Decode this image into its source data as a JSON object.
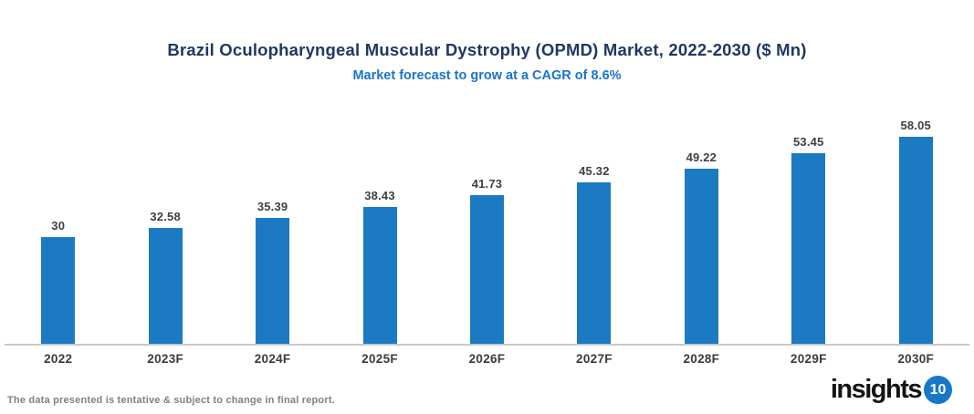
{
  "header": {
    "title": "Brazil Oculopharyngeal Muscular Dystrophy (OPMD) Market, 2022-2030 ($ Mn)",
    "subtitle": "Market forecast to grow at a CAGR of 8.6%"
  },
  "chart_data": {
    "type": "bar",
    "title": "Brazil Oculopharyngeal Muscular Dystrophy (OPMD) Market, 2022-2030 ($ Mn)",
    "subtitle": "Market forecast to grow at a CAGR of 8.6%",
    "categories": [
      "2022",
      "2023F",
      "2024F",
      "2025F",
      "2026F",
      "2027F",
      "2028F",
      "2029F",
      "2030F"
    ],
    "values": [
      30,
      32.58,
      35.39,
      38.43,
      41.73,
      45.32,
      49.22,
      53.45,
      58.05
    ],
    "value_labels": [
      "30",
      "32.58",
      "35.39",
      "38.43",
      "41.73",
      "45.32",
      "49.22",
      "53.45",
      "58.05"
    ],
    "xlabel": "",
    "ylabel": "",
    "ylim": [
      0,
      70
    ],
    "grid": false,
    "legend": "none",
    "bar_color": "#1B7AC2",
    "data_labels": "above-bars"
  },
  "footer": {
    "disclaimer": "The data presented is tentative & subject to change in final report.",
    "logo_text": "insights",
    "logo_badge": "10"
  },
  "colors": {
    "title": "#1F3864",
    "subtitle": "#1B73CE",
    "bar": "#1B7AC2",
    "value_label": "#404040",
    "axis_label": "#3B3B3B",
    "axis_line": "#C9C9C9",
    "disclaimer": "#808080",
    "logo_text": "#141414",
    "logo_badge_bg": "#1878C8",
    "logo_badge_text": "#FFFFFF"
  }
}
